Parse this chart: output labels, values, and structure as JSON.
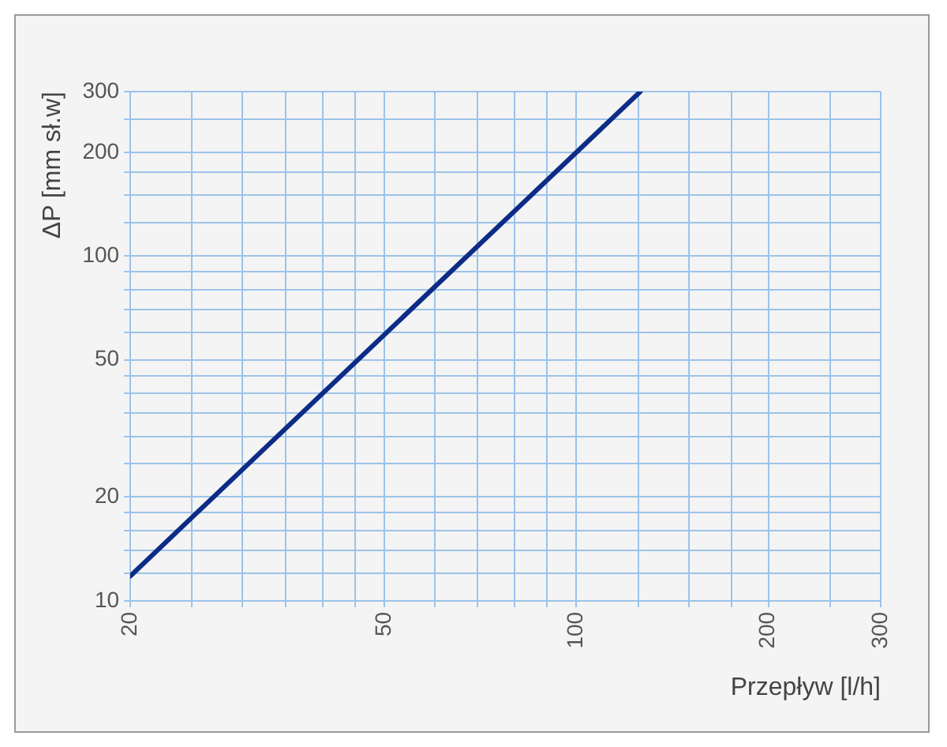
{
  "chart_data": {
    "type": "line",
    "xlabel": "Przepływ [l/h]",
    "ylabel": "ΔP [mm sł.w]",
    "x": [
      20,
      126
    ],
    "series": [
      {
        "color": "#0d2c87",
        "values": [
          11.8,
          300
        ]
      }
    ],
    "log": "xy",
    "grid": true,
    "marker": "none",
    "line_style": "solid",
    "xlim": [
      20,
      300
    ],
    "xticks": [
      20,
      {
        "value": 25,
        "label": null
      },
      {
        "value": 30,
        "label": null
      },
      {
        "value": 35,
        "label": null
      },
      {
        "value": 40,
        "label": null
      },
      {
        "value": 45,
        "label": null
      },
      50,
      {
        "value": 60,
        "label": null
      },
      {
        "value": 70,
        "label": null
      },
      {
        "value": 80,
        "label": null
      },
      {
        "value": 90,
        "label": null
      },
      100,
      {
        "value": 125,
        "label": null
      },
      {
        "value": 150,
        "label": null
      },
      {
        "value": 175,
        "label": null
      },
      200,
      {
        "value": 250,
        "label": null
      },
      300
    ],
    "ylim": [
      10,
      300
    ],
    "yticks": [
      10,
      {
        "value": 12,
        "label": null
      },
      {
        "value": 14,
        "label": null
      },
      {
        "value": 16,
        "label": null
      },
      {
        "value": 18,
        "label": null
      },
      20,
      {
        "value": 25,
        "label": null
      },
      {
        "value": 30,
        "label": null
      },
      {
        "value": 35,
        "label": null
      },
      {
        "value": 40,
        "label": null
      },
      {
        "value": 45,
        "label": null
      },
      50,
      {
        "value": 60,
        "label": null
      },
      {
        "value": 70,
        "label": null
      },
      {
        "value": 80,
        "label": null
      },
      {
        "value": 90,
        "label": null
      },
      100,
      {
        "value": 125,
        "label": null
      },
      {
        "value": 150,
        "label": null
      },
      {
        "value": 175,
        "label": null
      },
      200,
      {
        "value": 250,
        "label": null
      },
      300
    ]
  }
}
